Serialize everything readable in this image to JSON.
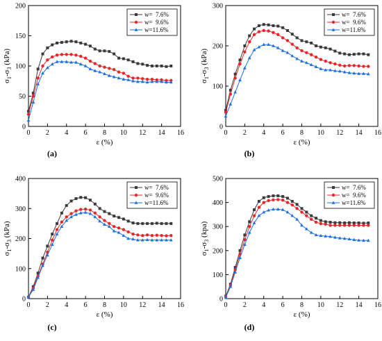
{
  "chart_data": [
    {
      "type": "line",
      "panel_label": "(a)",
      "xlabel": "ε (%)",
      "ylabel_main": "σ",
      "ylabel_sub1": "1",
      "ylabel_mid": "-σ",
      "ylabel_sub2": "3",
      "ylabel_unit": " (kPa)",
      "xlim": [
        0,
        16
      ],
      "ylim": [
        0,
        200
      ],
      "xticks": [
        0,
        2,
        4,
        6,
        8,
        10,
        12,
        14,
        16
      ],
      "yticks": [
        0,
        50,
        100,
        150,
        200
      ],
      "legend_position": "top-right",
      "x": [
        0,
        0.5,
        1,
        1.5,
        2,
        2.5,
        3,
        3.5,
        4,
        4.5,
        5,
        5.5,
        6,
        6.5,
        7,
        7.5,
        8,
        8.5,
        9,
        9.5,
        10,
        10.5,
        11,
        11.5,
        12,
        12.5,
        13,
        13.5,
        14,
        14.5,
        15
      ],
      "series": [
        {
          "name": "w=  7.6%",
          "color": "#3a3a3a",
          "marker": "square",
          "values": [
            25,
            55,
            95,
            120,
            130,
            135,
            138,
            139,
            140,
            141,
            140,
            138,
            136,
            133,
            128,
            125,
            125,
            124,
            120,
            113,
            112,
            110,
            107,
            104,
            103,
            101,
            100,
            100,
            100,
            99,
            100
          ]
        },
        {
          "name": "w=  9.6%",
          "color": "#e8262a",
          "marker": "circle",
          "values": [
            20,
            50,
            80,
            100,
            110,
            115,
            118,
            119,
            119,
            119,
            118,
            116,
            113,
            108,
            104,
            100,
            98,
            96,
            94,
            90,
            88,
            83,
            80,
            80,
            79,
            78,
            78,
            77,
            77,
            76,
            76
          ]
        },
        {
          "name": "w=11.6%",
          "color": "#1e6fe6",
          "marker": "triangle",
          "values": [
            10,
            40,
            70,
            88,
            97,
            103,
            107,
            107,
            107,
            106,
            106,
            103,
            100,
            95,
            92,
            90,
            87,
            84,
            82,
            80,
            78,
            77,
            75,
            74,
            74,
            73,
            74,
            74,
            74,
            73,
            73
          ]
        }
      ]
    },
    {
      "type": "line",
      "panel_label": "(b)",
      "xlabel": "ε (%)",
      "ylabel_main": "σ",
      "ylabel_sub1": "1",
      "ylabel_mid": "-σ",
      "ylabel_sub2": "3",
      "ylabel_unit": " (kPa)",
      "xlim": [
        0,
        16
      ],
      "ylim": [
        0,
        300
      ],
      "xticks": [
        0,
        2,
        4,
        6,
        8,
        10,
        12,
        14,
        16
      ],
      "yticks": [
        0,
        100,
        200,
        300
      ],
      "legend_position": "top-right",
      "x": [
        0,
        0.5,
        1,
        1.5,
        2,
        2.5,
        3,
        3.5,
        4,
        4.5,
        5,
        5.5,
        6,
        6.5,
        7,
        7.5,
        8,
        8.5,
        9,
        9.5,
        10,
        10.5,
        11,
        11.5,
        12,
        12.5,
        13,
        13.5,
        14,
        14.5,
        15
      ],
      "series": [
        {
          "name": "w=  7.6%",
          "color": "#3a3a3a",
          "marker": "square",
          "values": [
            40,
            90,
            130,
            165,
            200,
            225,
            242,
            250,
            253,
            252,
            250,
            249,
            245,
            238,
            229,
            220,
            213,
            210,
            207,
            200,
            197,
            195,
            192,
            187,
            182,
            180,
            178,
            179,
            180,
            180,
            178
          ]
        },
        {
          "name": "w=  9.6%",
          "color": "#e8262a",
          "marker": "circle",
          "values": [
            35,
            80,
            120,
            155,
            185,
            210,
            228,
            235,
            238,
            237,
            233,
            228,
            220,
            213,
            204,
            195,
            188,
            183,
            178,
            172,
            166,
            162,
            158,
            155,
            152,
            150,
            151,
            151,
            150,
            149,
            149
          ]
        },
        {
          "name": "w=11.6%",
          "color": "#1e6fe6",
          "marker": "triangle",
          "values": [
            25,
            55,
            85,
            115,
            145,
            170,
            190,
            197,
            203,
            203,
            200,
            195,
            188,
            183,
            175,
            168,
            162,
            158,
            153,
            148,
            143,
            140,
            140,
            138,
            137,
            135,
            133,
            132,
            131,
            131,
            130
          ]
        }
      ]
    },
    {
      "type": "line",
      "panel_label": "(c)",
      "xlabel": "ε (%)",
      "ylabel_main": "σ",
      "ylabel_sub1": "1",
      "ylabel_mid": "-σ",
      "ylabel_sub2": "3",
      "ylabel_unit": " (kPa)",
      "xlim": [
        0,
        16
      ],
      "ylim": [
        0,
        400
      ],
      "xticks": [
        0,
        2,
        4,
        6,
        8,
        10,
        12,
        14,
        16
      ],
      "yticks": [
        0,
        100,
        200,
        300,
        400
      ],
      "legend_position": "top-right",
      "x": [
        0,
        0.5,
        1,
        1.5,
        2,
        2.5,
        3,
        3.5,
        4,
        4.5,
        5,
        5.5,
        6,
        6.5,
        7,
        7.5,
        8,
        8.5,
        9,
        9.5,
        10,
        10.5,
        11,
        11.5,
        12,
        12.5,
        13,
        13.5,
        14,
        14.5,
        15
      ],
      "series": [
        {
          "name": "w=  7.6%",
          "color": "#3a3a3a",
          "marker": "square",
          "values": [
            5,
            40,
            85,
            135,
            175,
            215,
            250,
            285,
            310,
            325,
            333,
            337,
            336,
            328,
            315,
            300,
            290,
            283,
            275,
            270,
            265,
            258,
            252,
            250,
            250,
            250,
            250,
            251,
            250,
            250,
            250
          ]
        },
        {
          "name": "w=  9.6%",
          "color": "#e8262a",
          "marker": "circle",
          "values": [
            5,
            35,
            75,
            115,
            155,
            195,
            230,
            255,
            272,
            283,
            292,
            297,
            298,
            295,
            285,
            272,
            260,
            250,
            240,
            235,
            230,
            222,
            215,
            212,
            210,
            212,
            210,
            211,
            210,
            209,
            210
          ]
        },
        {
          "name": "w=11.6%",
          "color": "#1e6fe6",
          "marker": "triangle",
          "values": [
            5,
            30,
            70,
            110,
            145,
            180,
            215,
            240,
            260,
            272,
            280,
            285,
            287,
            283,
            272,
            258,
            247,
            240,
            225,
            220,
            210,
            200,
            198,
            195,
            195,
            196,
            195,
            195,
            195,
            195,
            195
          ]
        }
      ]
    },
    {
      "type": "line",
      "panel_label": "(d)",
      "xlabel": "ε (%)",
      "ylabel_main": "σ",
      "ylabel_sub1": "1",
      "ylabel_mid": "-σ",
      "ylabel_sub2": "3",
      "ylabel_unit": " (kpa)",
      "xlim": [
        0,
        16
      ],
      "ylim": [
        0,
        500
      ],
      "xticks": [
        0,
        2,
        4,
        6,
        8,
        10,
        12,
        14,
        16
      ],
      "yticks": [
        0,
        100,
        200,
        300,
        400,
        500
      ],
      "legend_position": "top-right",
      "x": [
        0,
        0.5,
        1,
        1.5,
        2,
        2.5,
        3,
        3.5,
        4,
        4.5,
        5,
        5.5,
        6,
        6.5,
        7,
        7.5,
        8,
        8.5,
        9,
        9.5,
        10,
        10.5,
        11,
        11.5,
        12,
        12.5,
        13,
        13.5,
        14,
        14.5,
        15
      ],
      "series": [
        {
          "name": "w=  7.6%",
          "color": "#3a3a3a",
          "marker": "square",
          "values": [
            10,
            60,
            130,
            200,
            265,
            320,
            370,
            405,
            420,
            425,
            428,
            428,
            425,
            418,
            405,
            392,
            375,
            360,
            345,
            335,
            325,
            320,
            318,
            316,
            316,
            315,
            316,
            315,
            315,
            314,
            315
          ]
        },
        {
          "name": "w=  9.6%",
          "color": "#e8262a",
          "marker": "circle",
          "values": [
            8,
            55,
            120,
            185,
            245,
            300,
            345,
            380,
            400,
            408,
            411,
            412,
            410,
            400,
            390,
            375,
            360,
            345,
            330,
            318,
            312,
            310,
            305,
            305,
            305,
            305,
            305,
            305,
            305,
            305,
            305
          ]
        },
        {
          "name": "w=11.6%",
          "color": "#1e6fe6",
          "marker": "triangle",
          "values": [
            5,
            50,
            110,
            170,
            225,
            275,
            315,
            345,
            360,
            368,
            372,
            372,
            370,
            360,
            345,
            330,
            305,
            290,
            275,
            265,
            262,
            260,
            258,
            255,
            252,
            250,
            248,
            245,
            243,
            242,
            242
          ]
        }
      ]
    }
  ]
}
